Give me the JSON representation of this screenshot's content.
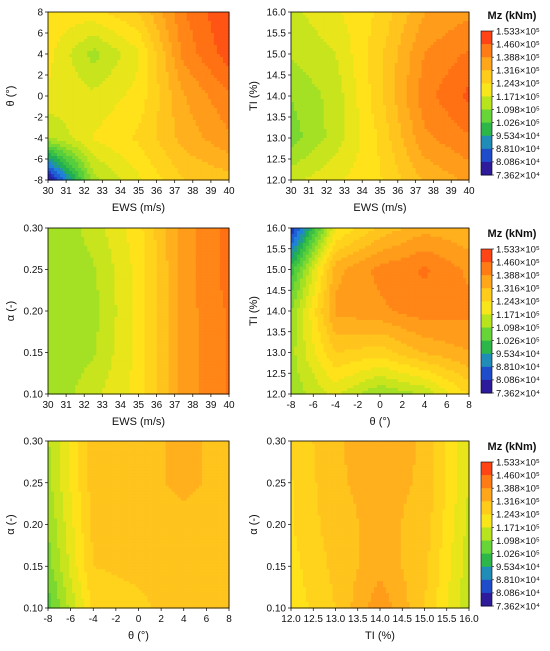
{
  "palette": [
    "#3a0a7e",
    "#1f2fbf",
    "#1f7fe0",
    "#22b14c",
    "#5fd23a",
    "#b8e41d",
    "#ffe61a",
    "#ffc61d",
    "#ff9a1a",
    "#ff6a12",
    "#ff2418"
  ],
  "legend": {
    "title": "Mz (kNm)",
    "labels": [
      "1.533×10⁵",
      "1.460×10⁵",
      "1.388×10⁵",
      "1.316×10⁵",
      "1.243×10⁵",
      "1.171×10⁵",
      "1.098×10⁵",
      "1.026×10⁵",
      "9.534×10⁴",
      "8.810×10⁴",
      "8.086×10⁴",
      "7.362×10⁴"
    ]
  },
  "chart_data": [
    {
      "type": "heatmap",
      "xlabel": "EWS (m/s)",
      "ylabel": "θ (°)",
      "xlim": [
        30,
        40
      ],
      "ylim": [
        -8,
        8
      ],
      "xticks": [
        "30",
        "31",
        "32",
        "33",
        "34",
        "35",
        "36",
        "37",
        "38",
        "39",
        "40"
      ],
      "yticks": [
        "-8",
        "-6",
        "-4",
        "-2",
        "0",
        "2",
        "4",
        "6",
        "8"
      ],
      "zlim": [
        73620,
        153300
      ],
      "x": [
        30,
        32.5,
        35,
        37.5,
        40
      ],
      "y": [
        -8,
        -4,
        0,
        4,
        8
      ],
      "z": [
        [
          75000,
          112000,
          120000,
          128000,
          130000
        ],
        [
          113000,
          121000,
          125000,
          133000,
          138000
        ],
        [
          120000,
          118000,
          122000,
          135000,
          142000
        ],
        [
          122000,
          112000,
          120000,
          140000,
          148000
        ],
        [
          123000,
          123000,
          128000,
          142000,
          150000
        ]
      ]
    },
    {
      "type": "heatmap",
      "xlabel": "EWS (m/s)",
      "ylabel": "TI (%)",
      "xlim": [
        30,
        40
      ],
      "ylim": [
        12,
        16
      ],
      "xticks": [
        "30",
        "31",
        "32",
        "33",
        "34",
        "35",
        "36",
        "37",
        "38",
        "39",
        "40"
      ],
      "yticks": [
        "12.0",
        "12.5",
        "13.0",
        "13.5",
        "14.0",
        "14.5",
        "15.0",
        "15.5",
        "16.0"
      ],
      "zlim": [
        73620,
        153300
      ],
      "x": [
        30,
        32.5,
        35,
        37.5,
        40
      ],
      "y": [
        12,
        13,
        14,
        15,
        16
      ],
      "z": [
        [
          116000,
          120000,
          124000,
          132000,
          136000
        ],
        [
          108000,
          115000,
          125000,
          138000,
          142000
        ],
        [
          110000,
          115000,
          127000,
          141000,
          147000
        ],
        [
          114000,
          117000,
          127000,
          139000,
          143000
        ],
        [
          116000,
          120000,
          125000,
          135000,
          138000
        ]
      ]
    },
    {
      "type": "heatmap",
      "xlabel": "EWS (m/s)",
      "ylabel": "α (-)",
      "xlim": [
        30,
        40
      ],
      "ylim": [
        0.1,
        0.3
      ],
      "xticks": [
        "30",
        "31",
        "32",
        "33",
        "34",
        "35",
        "36",
        "37",
        "38",
        "39",
        "40"
      ],
      "yticks": [
        "0.10",
        "0.15",
        "0.20",
        "0.25",
        "0.30"
      ],
      "zlim": [
        73620,
        153300
      ],
      "x": [
        30,
        32.5,
        35,
        37.5,
        40
      ],
      "y": [
        0.1,
        0.15,
        0.2,
        0.25,
        0.3
      ],
      "z": [
        [
          110000,
          116000,
          122000,
          137000,
          143000
        ],
        [
          110000,
          113000,
          122000,
          137000,
          143000
        ],
        [
          110000,
          112000,
          122000,
          137000,
          143000
        ],
        [
          110000,
          113000,
          122000,
          137000,
          144000
        ],
        [
          110000,
          115000,
          123000,
          137000,
          144000
        ]
      ]
    },
    {
      "type": "heatmap",
      "xlabel": "θ (°)",
      "ylabel": "TI (%)",
      "xlim": [
        -8,
        8
      ],
      "ylim": [
        12,
        16
      ],
      "xticks": [
        "-8",
        "-6",
        "-4",
        "-2",
        "0",
        "2",
        "4",
        "6",
        "8"
      ],
      "yticks": [
        "12.0",
        "12.5",
        "13.0",
        "13.5",
        "14.0",
        "14.5",
        "15.0",
        "15.5",
        "16.0"
      ],
      "zlim": [
        73620,
        153300
      ],
      "x": [
        -8,
        -4,
        0,
        4,
        8
      ],
      "y": [
        12,
        13,
        14,
        15,
        16
      ],
      "z": [
        [
          111000,
          118000,
          110000,
          114000,
          125000
        ],
        [
          112000,
          128000,
          126000,
          132000,
          135000
        ],
        [
          110000,
          136000,
          138000,
          141000,
          140000
        ],
        [
          100000,
          134000,
          140000,
          143000,
          138000
        ],
        [
          80000,
          120000,
          129000,
          134000,
          132000
        ]
      ]
    },
    {
      "type": "heatmap",
      "xlabel": "θ (°)",
      "ylabel": "α (-)",
      "xlim": [
        -8,
        8
      ],
      "ylim": [
        0.1,
        0.3
      ],
      "xticks": [
        "-8",
        "-6",
        "-4",
        "-2",
        "0",
        "2",
        "4",
        "6",
        "8"
      ],
      "yticks": [
        "0.10",
        "0.15",
        "0.20",
        "0.25",
        "0.30"
      ],
      "zlim": [
        73620,
        153300
      ],
      "x": [
        -8,
        -4,
        0,
        4,
        8
      ],
      "y": [
        0.1,
        0.15,
        0.2,
        0.25,
        0.3
      ],
      "z": [
        [
          104000,
          125000,
          127000,
          130000,
          128000
        ],
        [
          108000,
          128000,
          129000,
          130000,
          129000
        ],
        [
          110000,
          129000,
          130000,
          131000,
          130000
        ],
        [
          112000,
          130000,
          131000,
          132000,
          131000
        ],
        [
          113000,
          130000,
          131000,
          132000,
          131000
        ]
      ]
    },
    {
      "type": "heatmap",
      "xlabel": "TI (%)",
      "ylabel": "α (-)",
      "xlim": [
        12,
        16
      ],
      "ylim": [
        0.1,
        0.3
      ],
      "xticks": [
        "12.0",
        "12.5",
        "13.0",
        "13.5",
        "14.0",
        "14.5",
        "15.0",
        "15.5",
        "16.0"
      ],
      "yticks": [
        "0.10",
        "0.15",
        "0.20",
        "0.25",
        "0.30"
      ],
      "zlim": [
        73620,
        153300
      ],
      "x": [
        12,
        13,
        14,
        15,
        16
      ],
      "y": [
        0.1,
        0.15,
        0.2,
        0.25,
        0.3
      ],
      "z": [
        [
          122000,
          128000,
          138000,
          128000,
          114000
        ],
        [
          123000,
          129000,
          134000,
          129000,
          115000
        ],
        [
          124000,
          130000,
          133000,
          130000,
          116000
        ],
        [
          124000,
          131000,
          133000,
          131000,
          117000
        ],
        [
          125000,
          131000,
          134000,
          131000,
          117000
        ]
      ]
    }
  ]
}
